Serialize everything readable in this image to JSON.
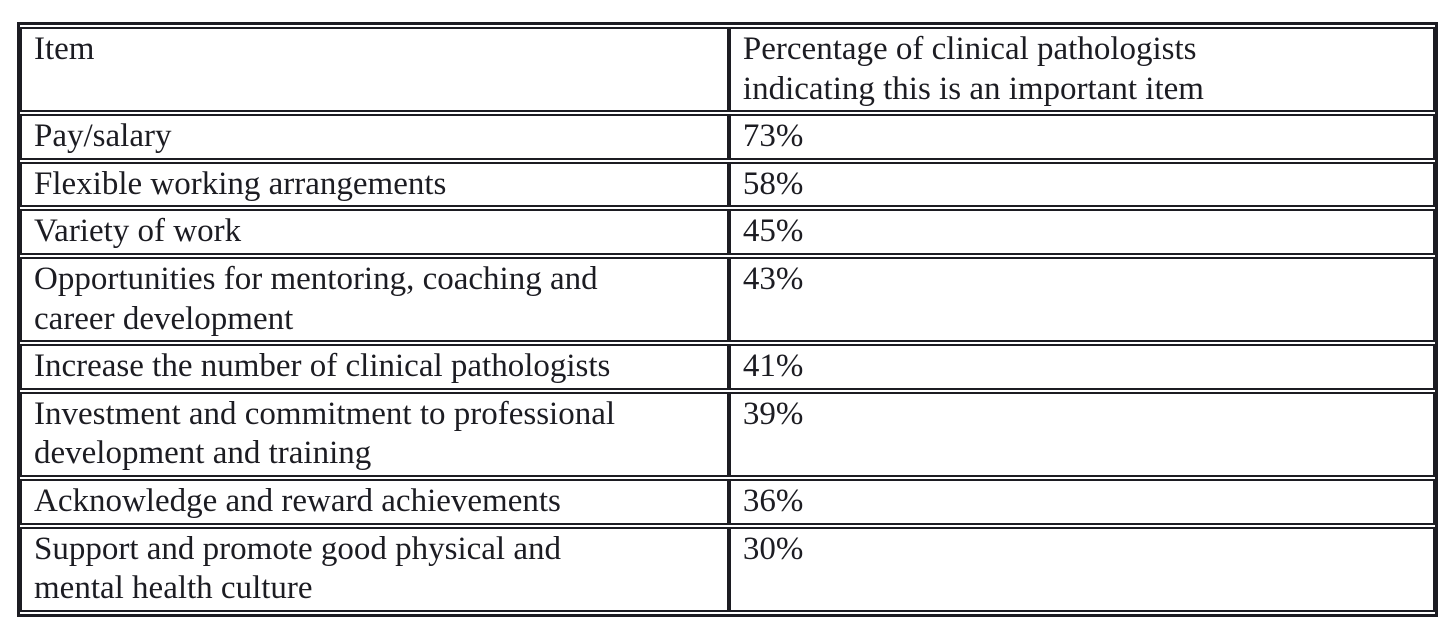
{
  "table": {
    "headers": {
      "item": "Item",
      "percentage": "Percentage of clinical pathologists\nindicating this is an important item"
    },
    "rows": [
      {
        "item": "Pay/salary",
        "percentage": "73%"
      },
      {
        "item": "Flexible working arrangements",
        "percentage": "58%"
      },
      {
        "item": "Variety of work",
        "percentage": "45%"
      },
      {
        "item": "Opportunities for mentoring, coaching and\ncareer development",
        "percentage": "43%"
      },
      {
        "item": "Increase the number of clinical pathologists",
        "percentage": "41%"
      },
      {
        "item": "Investment and commitment to professional\ndevelopment and training",
        "percentage": "39%"
      },
      {
        "item": "Acknowledge and reward achievements",
        "percentage": "36%"
      },
      {
        "item": "Support and promote good physical and\nmental health culture",
        "percentage": "30%"
      }
    ],
    "colors": {
      "border": "#1c1c22",
      "text": "#1c1c22",
      "background": "#ffffff"
    }
  }
}
